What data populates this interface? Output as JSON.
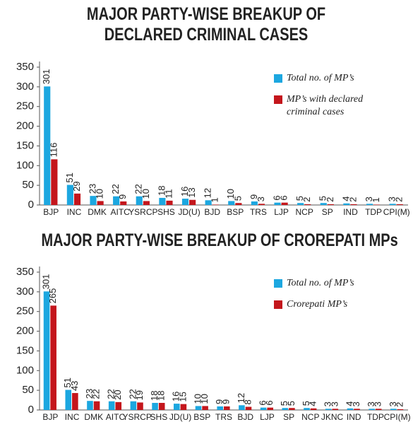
{
  "chart_data": [
    {
      "type": "bar",
      "title": "MAJOR PARTY-WISE BREAKUP OF DECLARED CRIMINAL CASES",
      "categories": [
        "BJP",
        "INC",
        "DMK",
        "AITC",
        "YSRCP",
        "SHS",
        "JD(U)",
        "BJD",
        "BSP",
        "TRS",
        "LJP",
        "NCP",
        "SP",
        "IND",
        "TDP",
        "CPI(M)"
      ],
      "series": [
        {
          "name": "Total no. of MP’s",
          "color": "#1ca7e0",
          "values": [
            301,
            51,
            23,
            22,
            22,
            18,
            16,
            12,
            10,
            9,
            6,
            5,
            5,
            4,
            3,
            3
          ]
        },
        {
          "name": "MP’s with declared criminal cases",
          "color": "#c4161c",
          "values": [
            116,
            29,
            10,
            9,
            10,
            11,
            13,
            1,
            5,
            3,
            6,
            2,
            2,
            2,
            1,
            2
          ]
        }
      ],
      "ylim": [
        0,
        350
      ],
      "yticks": [
        0,
        50,
        100,
        150,
        200,
        250,
        300,
        350
      ],
      "legend": "upper right"
    },
    {
      "type": "bar",
      "title": "MAJOR PARTY-WISE BREAKUP OF CROREPATI MPs",
      "categories": [
        "BJP",
        "INC",
        "DMK",
        "AITC",
        "YSRCP",
        "SHS",
        "JD(U)",
        "BSP",
        "TRS",
        "BJD",
        "LJP",
        "SP",
        "NCP",
        "JKNC",
        "IND",
        "TDP",
        "CPI(M)"
      ],
      "series": [
        {
          "name": "Total no. of MP’s",
          "color": "#1ca7e0",
          "values": [
            301,
            51,
            23,
            22,
            22,
            18,
            16,
            10,
            9,
            12,
            6,
            5,
            5,
            3,
            4,
            3,
            3
          ]
        },
        {
          "name": "Crorepati MP’s",
          "color": "#c4161c",
          "values": [
            265,
            43,
            22,
            20,
            19,
            18,
            15,
            10,
            9,
            8,
            6,
            5,
            4,
            3,
            3,
            3,
            2
          ]
        }
      ],
      "ylim": [
        0,
        350
      ],
      "yticks": [
        0,
        50,
        100,
        150,
        200,
        250,
        300,
        350
      ],
      "legend": "upper right"
    }
  ]
}
